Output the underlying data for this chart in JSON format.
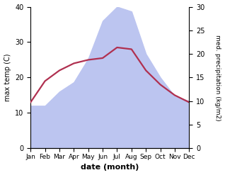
{
  "months": [
    "Jan",
    "Feb",
    "Mar",
    "Apr",
    "May",
    "Jun",
    "Jul",
    "Aug",
    "Sep",
    "Oct",
    "Nov",
    "Dec"
  ],
  "month_indices": [
    0,
    1,
    2,
    3,
    4,
    5,
    6,
    7,
    8,
    9,
    10,
    11
  ],
  "temperature": [
    13.0,
    19.0,
    22.0,
    24.0,
    25.0,
    25.5,
    28.5,
    28.0,
    22.0,
    18.0,
    15.0,
    13.0
  ],
  "precipitation": [
    9,
    9,
    12,
    14,
    19,
    27,
    30,
    29,
    20,
    15,
    11,
    10
  ],
  "temp_ylim": [
    0,
    40
  ],
  "precip_ylim": [
    0,
    30
  ],
  "temp_color": "#b03050",
  "precip_fill_color": "#bcc5f0",
  "xlabel": "date (month)",
  "ylabel_left": "max temp (C)",
  "ylabel_right": "med. precipitation (kg/m2)",
  "bg_color": "#ffffff",
  "temp_linewidth": 1.6
}
